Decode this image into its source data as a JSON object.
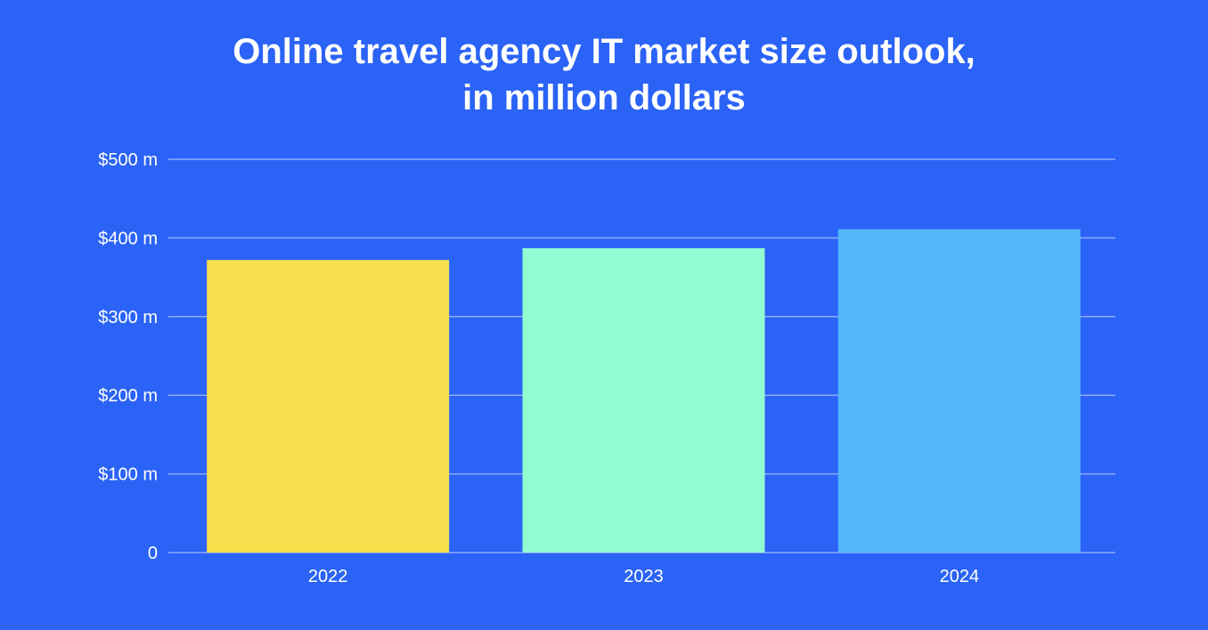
{
  "chart_data": {
    "type": "bar",
    "title_lines": [
      "Online travel agency IT market size outlook,",
      "in million dollars"
    ],
    "categories": [
      "2022",
      "2023",
      "2024"
    ],
    "values": [
      372,
      387,
      411
    ],
    "bar_colors": [
      "#f7df4e",
      "#91fbd1",
      "#54b7fb"
    ],
    "ylim": [
      0,
      500
    ],
    "yticks": [
      0,
      100,
      200,
      300,
      400,
      500
    ],
    "ytick_labels": [
      "0",
      "$100 m",
      "$200 m",
      "$300 m",
      "$400 m",
      "$500 m"
    ],
    "grid": true,
    "xlabel": "",
    "ylabel": ""
  },
  "colors": {
    "background": "#2b63f6",
    "gridline": "#8fa9ff",
    "text": "#ffffff"
  }
}
